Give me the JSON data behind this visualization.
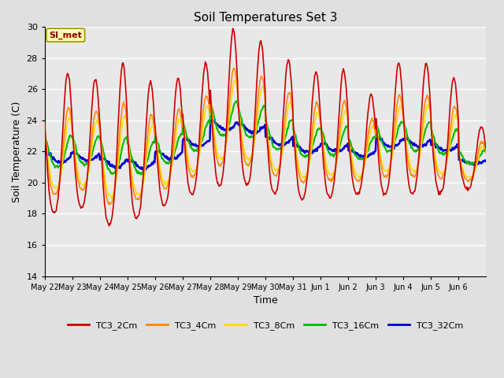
{
  "title": "Soil Temperatures Set 3",
  "xlabel": "Time",
  "ylabel": "Soil Temperature (C)",
  "ylim": [
    14,
    30
  ],
  "yticks": [
    14,
    16,
    18,
    20,
    22,
    24,
    26,
    28,
    30
  ],
  "background_color": "#e0e0e0",
  "plot_bg_color": "#e8e8e8",
  "series_colors": {
    "TC3_2Cm": "#cc0000",
    "TC3_4Cm": "#ff8800",
    "TC3_8Cm": "#ffdd00",
    "TC3_16Cm": "#00bb00",
    "TC3_32Cm": "#0000cc"
  },
  "annotation_text": "SI_met",
  "x_tick_labels": [
    "May 22",
    "May 23",
    "May 24",
    "May 25",
    "May 26",
    "May 27",
    "May 28",
    "May 29",
    "May 30",
    "May 31",
    "Jun 1",
    "Jun 2",
    "Jun 3",
    "Jun 4",
    "Jun 5",
    "Jun 6"
  ],
  "num_days": 16,
  "pts_per_day": 48
}
